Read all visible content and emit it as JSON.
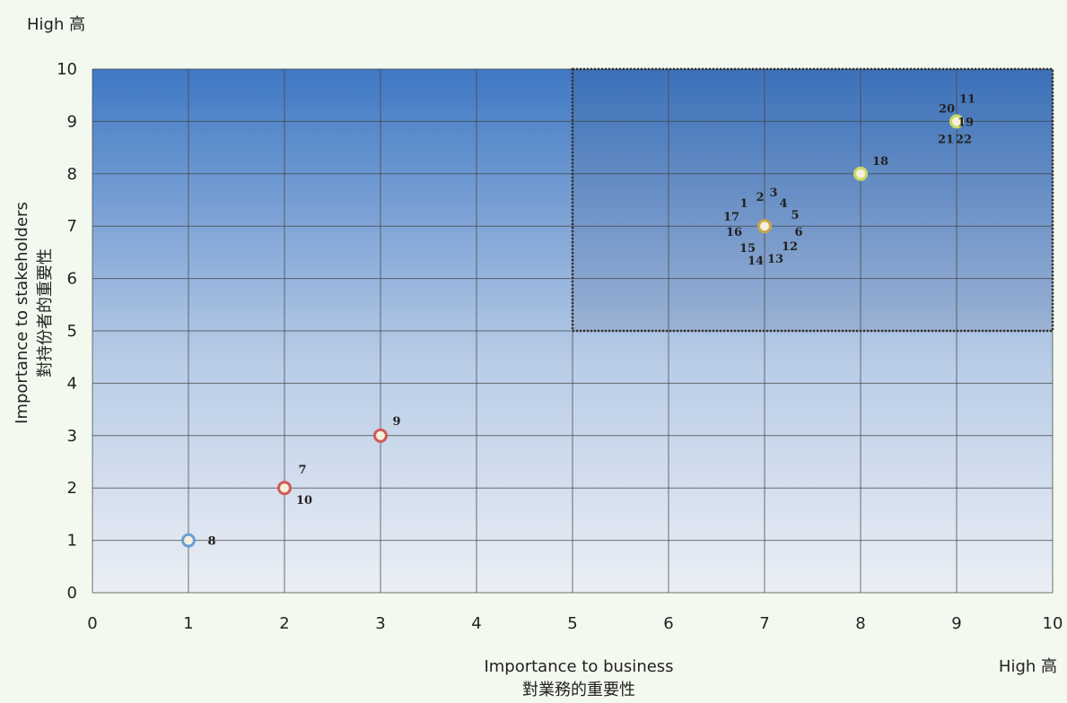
{
  "chart_data": {
    "type": "scatter",
    "title": "",
    "high_label_y": "High 高",
    "high_label_x": "High 高",
    "xlabel": "Importance to business",
    "xlabel_zh": "對業務的重要性",
    "ylabel": "Importance to stakeholders",
    "ylabel_zh": "對持份者的重要性",
    "xlim": [
      0,
      10
    ],
    "ylim": [
      0,
      10
    ],
    "x_ticks": [
      "0",
      "1",
      "2",
      "3",
      "4",
      "5",
      "6",
      "7",
      "8",
      "9",
      "10"
    ],
    "y_ticks": [
      "0",
      "1",
      "2",
      "3",
      "4",
      "5",
      "6",
      "7",
      "8",
      "9",
      "10"
    ],
    "grid": true,
    "highlight_region": {
      "x": [
        5,
        10
      ],
      "y": [
        5,
        10
      ]
    },
    "colors": {
      "gradient_top": "#3f78c4",
      "gradient_bottom": "#ebeff5",
      "blue": "#6a9fd4",
      "red": "#d05a5a",
      "green": "#c9d960",
      "orange": "#c8a64a"
    },
    "points": [
      {
        "x": 1,
        "y": 1,
        "color": "blue",
        "labels": [
          "8"
        ]
      },
      {
        "x": 2,
        "y": 2,
        "color": "red",
        "labels": [
          "7",
          "10"
        ]
      },
      {
        "x": 3,
        "y": 3,
        "color": "red",
        "labels": [
          "9"
        ]
      },
      {
        "x": 7,
        "y": 7,
        "color": "orange",
        "labels": [
          "1",
          "2",
          "3",
          "4",
          "5",
          "6",
          "12",
          "13",
          "14",
          "15",
          "16",
          "17"
        ]
      },
      {
        "x": 8,
        "y": 8,
        "color": "green",
        "labels": [
          "18"
        ]
      },
      {
        "x": 9,
        "y": 9,
        "color": "green",
        "labels": [
          "11",
          "19",
          "20",
          "21",
          "22"
        ]
      }
    ]
  }
}
